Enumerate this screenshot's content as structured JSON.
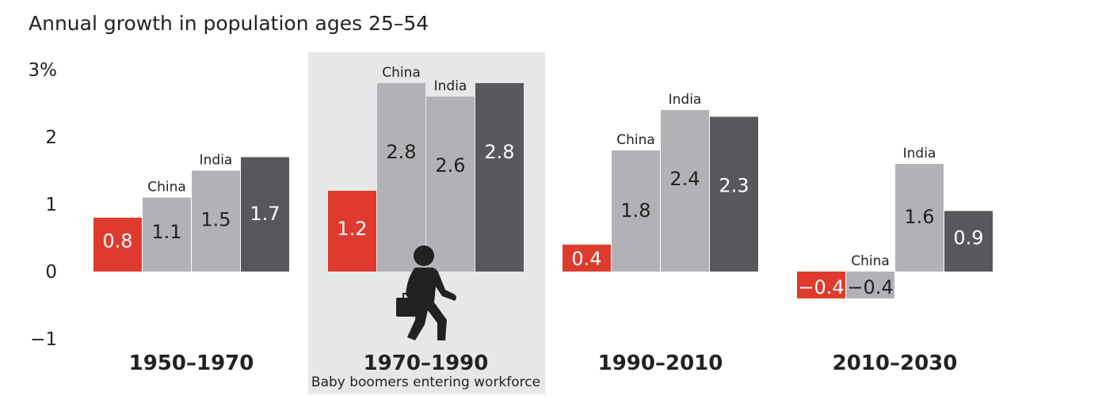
{
  "chart_data": {
    "type": "bar",
    "title": "Annual growth in population ages 25–54",
    "ylim": [
      -1,
      3
    ],
    "y_ticks": [
      {
        "value": 3,
        "label": "3%"
      },
      {
        "value": 2,
        "label": "2"
      },
      {
        "value": 1,
        "label": "1"
      },
      {
        "value": 0,
        "label": "0"
      },
      {
        "value": -1,
        "label": "−1"
      }
    ],
    "colors": {
      "red": "#de3b2e",
      "light": "#b1b2b5",
      "dark": "#57585b",
      "panel": "#e6e7e8"
    },
    "highlighted_group": 1,
    "groups": [
      {
        "label": "1950–1970",
        "sublabel": "",
        "bars": [
          {
            "value": 0.8,
            "label": "0.8",
            "country": "",
            "color": "red"
          },
          {
            "value": 1.1,
            "label": "1.1",
            "country": "China",
            "color": "light"
          },
          {
            "value": 1.5,
            "label": "1.5",
            "country": "India",
            "color": "light"
          },
          {
            "value": 1.7,
            "label": "1.7",
            "country": "",
            "color": "dark"
          }
        ]
      },
      {
        "label": "1970–1990",
        "sublabel": "Baby boomers entering workforce",
        "bars": [
          {
            "value": 1.2,
            "label": "1.2",
            "country": "",
            "color": "red"
          },
          {
            "value": 2.8,
            "label": "2.8",
            "country": "China",
            "color": "light"
          },
          {
            "value": 2.6,
            "label": "2.6",
            "country": "India",
            "color": "light"
          },
          {
            "value": 2.8,
            "label": "2.8",
            "country": "",
            "color": "dark"
          }
        ]
      },
      {
        "label": "1990–2010",
        "sublabel": "",
        "bars": [
          {
            "value": 0.4,
            "label": "0.4",
            "country": "",
            "color": "red"
          },
          {
            "value": 1.8,
            "label": "1.8",
            "country": "China",
            "color": "light"
          },
          {
            "value": 2.4,
            "label": "2.4",
            "country": "India",
            "color": "light"
          },
          {
            "value": 2.3,
            "label": "2.3",
            "country": "",
            "color": "dark"
          }
        ]
      },
      {
        "label": "2010–2030",
        "sublabel": "",
        "bars": [
          {
            "value": -0.4,
            "label": "−0.4",
            "country": "",
            "color": "red"
          },
          {
            "value": -0.4,
            "label": "−0.4",
            "country": "China",
            "color": "light"
          },
          {
            "value": 1.6,
            "label": "1.6",
            "country": "India",
            "color": "light"
          },
          {
            "value": 0.9,
            "label": "0.9",
            "country": "",
            "color": "dark"
          }
        ]
      }
    ],
    "icon": "person-with-briefcase-icon"
  }
}
